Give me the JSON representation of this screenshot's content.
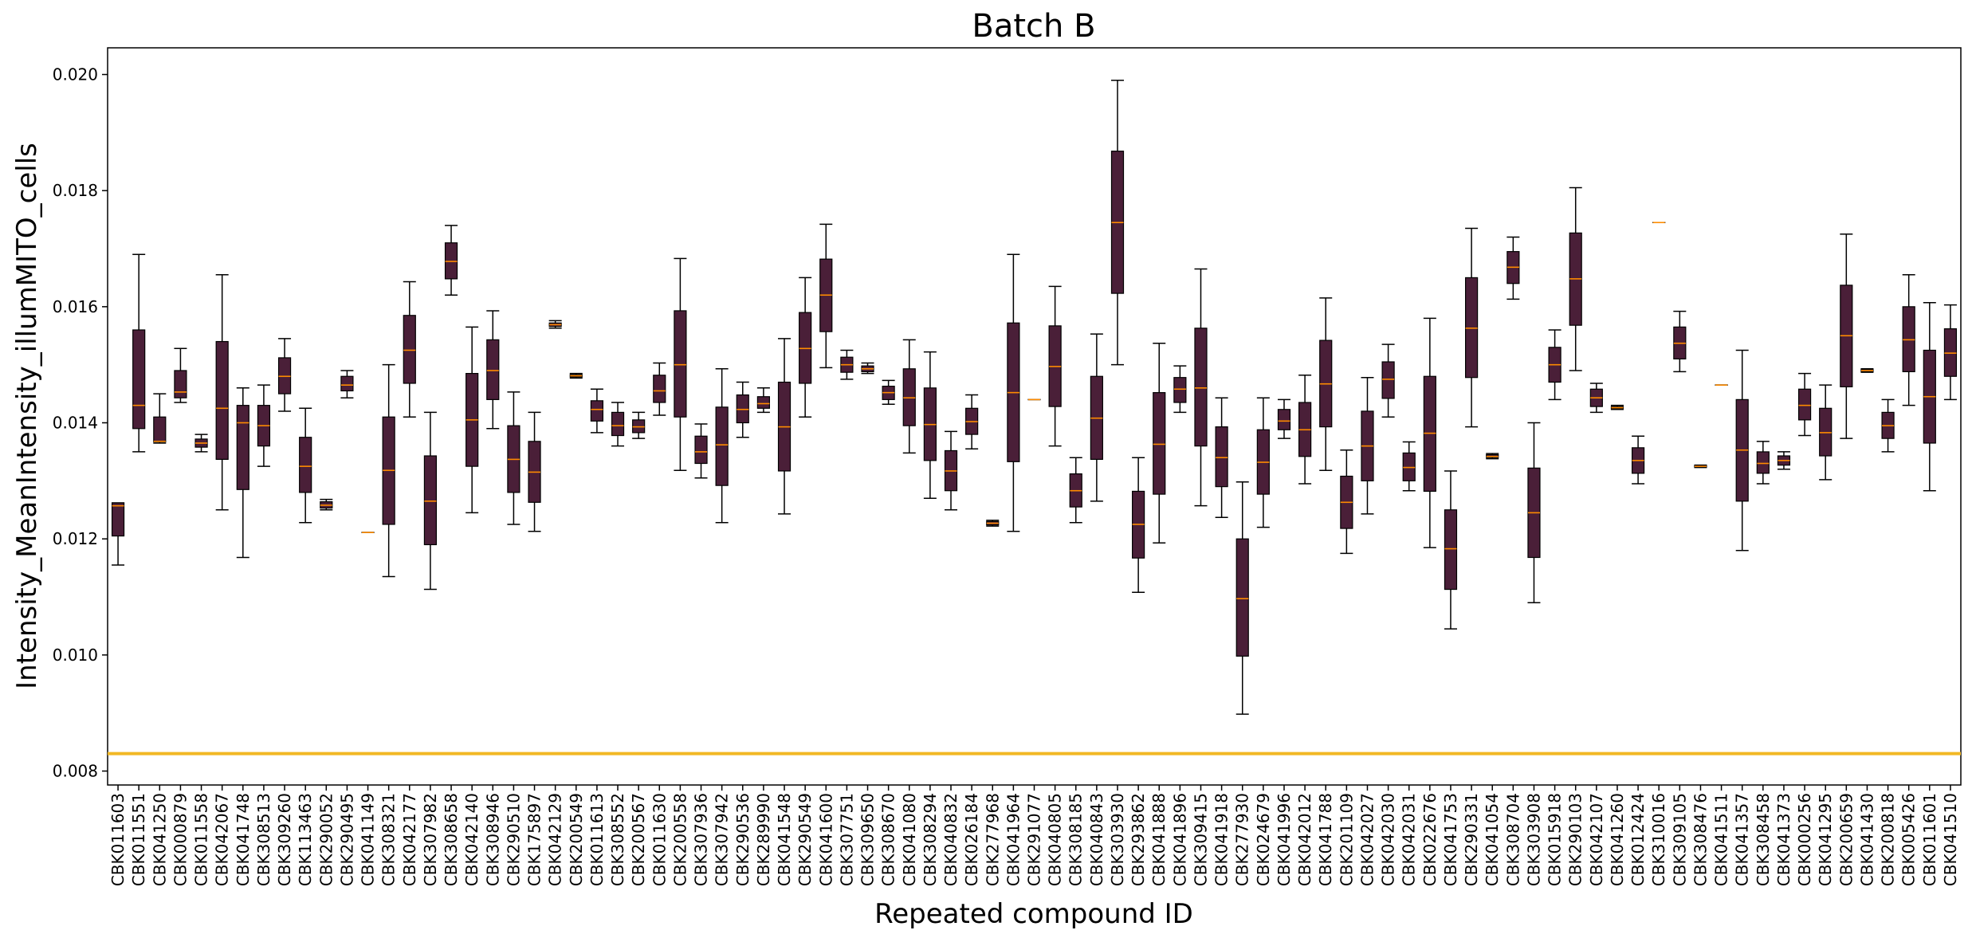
{
  "chart_data": {
    "type": "boxplot",
    "title": "Batch B",
    "xlabel": "Repeated compound ID",
    "ylabel": "Intensity_MeanIntensity_illumMITO_cells",
    "ylim": [
      0.00776,
      0.02046
    ],
    "yticks": [
      0.008,
      0.01,
      0.012,
      0.014,
      0.016,
      0.018,
      0.02
    ],
    "ytick_labels": [
      "0.008",
      "0.010",
      "0.012",
      "0.014",
      "0.016",
      "0.018",
      "0.020"
    ],
    "grid": false,
    "reference_line": {
      "y": 0.0083,
      "color": "#f2b824"
    },
    "box_color": "#4a1f38",
    "median_color": "#ff8c00",
    "categories": [
      "CBK011603",
      "CBK011551",
      "CBK041250",
      "CBK000879",
      "CBK011558",
      "CBK042067",
      "CBK041748",
      "CBK308513",
      "CBK309260",
      "CBK113463",
      "CBK290052",
      "CBK290495",
      "CBK041149",
      "CBK308321",
      "CBK042177",
      "CBK307982",
      "CBK308658",
      "CBK042140",
      "CBK308946",
      "CBK290510",
      "CBK175897",
      "CBK042129",
      "CBK200549",
      "CBK011613",
      "CBK308552",
      "CBK200567",
      "CBK011630",
      "CBK200558",
      "CBK307936",
      "CBK307942",
      "CBK290536",
      "CBK289990",
      "CBK041548",
      "CBK290549",
      "CBK041600",
      "CBK307751",
      "CBK309650",
      "CBK308670",
      "CBK041080",
      "CBK308294",
      "CBK040832",
      "CBK026184",
      "CBK277968",
      "CBK041964",
      "CBK291077",
      "CBK040805",
      "CBK308185",
      "CBK040843",
      "CBK303930",
      "CBK293862",
      "CBK041888",
      "CBK041896",
      "CBK309415",
      "CBK041918",
      "CBK277930",
      "CBK024679",
      "CBK041996",
      "CBK042012",
      "CBK041788",
      "CBK201109",
      "CBK042027",
      "CBK042030",
      "CBK042031",
      "CBK022676",
      "CBK041753",
      "CBK290331",
      "CBK041054",
      "CBK308704",
      "CBK303908",
      "CBK015918",
      "CBK290103",
      "CBK042107",
      "CBK041260",
      "CBK012424",
      "CBK310016",
      "CBK309105",
      "CBK308476",
      "CBK041511",
      "CBK041357",
      "CBK308458",
      "CBK041373",
      "CBK000256",
      "CBK041295",
      "CBK200659",
      "CBK041430",
      "CBK200818",
      "CBK005426",
      "CBK011601",
      "CBK041510"
    ],
    "boxes": [
      {
        "whislo": 0.01155,
        "q1": 0.01205,
        "med": 0.01257,
        "q3": 0.01262,
        "whishi": 0.01262
      },
      {
        "whislo": 0.0135,
        "q1": 0.0139,
        "med": 0.0143,
        "q3": 0.0156,
        "whishi": 0.0169
      },
      {
        "whislo": 0.01365,
        "q1": 0.01367,
        "med": 0.01368,
        "q3": 0.0141,
        "whishi": 0.0145
      },
      {
        "whislo": 0.01435,
        "q1": 0.01443,
        "med": 0.01453,
        "q3": 0.0149,
        "whishi": 0.01528
      },
      {
        "whislo": 0.0135,
        "q1": 0.01358,
        "med": 0.01365,
        "q3": 0.01372,
        "whishi": 0.0138
      },
      {
        "whislo": 0.0125,
        "q1": 0.01337,
        "med": 0.01425,
        "q3": 0.0154,
        "whishi": 0.01655
      },
      {
        "whislo": 0.01168,
        "q1": 0.01285,
        "med": 0.014,
        "q3": 0.0143,
        "whishi": 0.0146
      },
      {
        "whislo": 0.01325,
        "q1": 0.0136,
        "med": 0.01395,
        "q3": 0.0143,
        "whishi": 0.01465
      },
      {
        "whislo": 0.0142,
        "q1": 0.0145,
        "med": 0.0148,
        "q3": 0.01512,
        "whishi": 0.01545
      },
      {
        "whislo": 0.01228,
        "q1": 0.0128,
        "med": 0.01325,
        "q3": 0.01375,
        "whishi": 0.01425
      },
      {
        "whislo": 0.0125,
        "q1": 0.01253,
        "med": 0.01258,
        "q3": 0.01264,
        "whishi": 0.01268
      },
      {
        "whislo": 0.01443,
        "q1": 0.01455,
        "med": 0.01465,
        "q3": 0.0148,
        "whishi": 0.0149
      },
      {
        "whislo": 0.01211,
        "q1": 0.01211,
        "med": 0.01211,
        "q3": 0.01211,
        "whishi": 0.01211
      },
      {
        "whislo": 0.01135,
        "q1": 0.01225,
        "med": 0.01318,
        "q3": 0.0141,
        "whishi": 0.015
      },
      {
        "whislo": 0.0141,
        "q1": 0.01468,
        "med": 0.01525,
        "q3": 0.01585,
        "whishi": 0.01643
      },
      {
        "whislo": 0.01113,
        "q1": 0.0119,
        "med": 0.01265,
        "q3": 0.01343,
        "whishi": 0.01418
      },
      {
        "whislo": 0.0162,
        "q1": 0.01648,
        "med": 0.01678,
        "q3": 0.0171,
        "whishi": 0.0174
      },
      {
        "whislo": 0.01245,
        "q1": 0.01325,
        "med": 0.01405,
        "q3": 0.01485,
        "whishi": 0.01565
      },
      {
        "whislo": 0.0139,
        "q1": 0.0144,
        "med": 0.0149,
        "q3": 0.01543,
        "whishi": 0.01593
      },
      {
        "whislo": 0.01225,
        "q1": 0.0128,
        "med": 0.01337,
        "q3": 0.01395,
        "whishi": 0.01453
      },
      {
        "whislo": 0.01213,
        "q1": 0.01263,
        "med": 0.01315,
        "q3": 0.01368,
        "whishi": 0.01418
      },
      {
        "whislo": 0.01563,
        "q1": 0.01566,
        "med": 0.01569,
        "q3": 0.01572,
        "whishi": 0.01576
      },
      {
        "whislo": 0.01477,
        "q1": 0.01479,
        "med": 0.01481,
        "q3": 0.01483,
        "whishi": 0.01485
      },
      {
        "whislo": 0.01383,
        "q1": 0.01403,
        "med": 0.01423,
        "q3": 0.01438,
        "whishi": 0.01458
      },
      {
        "whislo": 0.0136,
        "q1": 0.01378,
        "med": 0.01395,
        "q3": 0.01418,
        "whishi": 0.01435
      },
      {
        "whislo": 0.01373,
        "q1": 0.01383,
        "med": 0.01393,
        "q3": 0.01405,
        "whishi": 0.01418
      },
      {
        "whislo": 0.01413,
        "q1": 0.01435,
        "med": 0.01455,
        "q3": 0.01482,
        "whishi": 0.01503
      },
      {
        "whislo": 0.01318,
        "q1": 0.0141,
        "med": 0.015,
        "q3": 0.01593,
        "whishi": 0.01683
      },
      {
        "whislo": 0.01305,
        "q1": 0.0133,
        "med": 0.0135,
        "q3": 0.01377,
        "whishi": 0.01398
      },
      {
        "whislo": 0.01228,
        "q1": 0.01292,
        "med": 0.01362,
        "q3": 0.01427,
        "whishi": 0.01493
      },
      {
        "whislo": 0.01375,
        "q1": 0.014,
        "med": 0.01423,
        "q3": 0.01448,
        "whishi": 0.0147
      },
      {
        "whislo": 0.01418,
        "q1": 0.01425,
        "med": 0.01433,
        "q3": 0.01445,
        "whishi": 0.0146
      },
      {
        "whislo": 0.01243,
        "q1": 0.01317,
        "med": 0.01393,
        "q3": 0.0147,
        "whishi": 0.01545
      },
      {
        "whislo": 0.0141,
        "q1": 0.01468,
        "med": 0.01528,
        "q3": 0.0159,
        "whishi": 0.0165
      },
      {
        "whislo": 0.01495,
        "q1": 0.01557,
        "med": 0.0162,
        "q3": 0.01682,
        "whishi": 0.01742
      },
      {
        "whislo": 0.01475,
        "q1": 0.01487,
        "med": 0.015,
        "q3": 0.01513,
        "whishi": 0.01525
      },
      {
        "whislo": 0.01485,
        "q1": 0.01488,
        "med": 0.01493,
        "q3": 0.01498,
        "whishi": 0.01503
      },
      {
        "whislo": 0.01432,
        "q1": 0.0144,
        "med": 0.01452,
        "q3": 0.01463,
        "whishi": 0.01473
      },
      {
        "whislo": 0.01348,
        "q1": 0.01395,
        "med": 0.01443,
        "q3": 0.01493,
        "whishi": 0.01543
      },
      {
        "whislo": 0.0127,
        "q1": 0.01335,
        "med": 0.01397,
        "q3": 0.0146,
        "whishi": 0.01522
      },
      {
        "whislo": 0.0125,
        "q1": 0.01283,
        "med": 0.01317,
        "q3": 0.01352,
        "whishi": 0.01385
      },
      {
        "whislo": 0.01355,
        "q1": 0.0138,
        "med": 0.01402,
        "q3": 0.01425,
        "whishi": 0.01448
      },
      {
        "whislo": 0.01222,
        "q1": 0.01224,
        "med": 0.01227,
        "q3": 0.0123,
        "whishi": 0.01232
      },
      {
        "whislo": 0.01213,
        "q1": 0.01333,
        "med": 0.01452,
        "q3": 0.01572,
        "whishi": 0.0169
      },
      {
        "whislo": 0.0144,
        "q1": 0.0144,
        "med": 0.0144,
        "q3": 0.0144,
        "whishi": 0.0144
      },
      {
        "whislo": 0.0136,
        "q1": 0.01428,
        "med": 0.01497,
        "q3": 0.01567,
        "whishi": 0.01635
      },
      {
        "whislo": 0.01228,
        "q1": 0.01255,
        "med": 0.01283,
        "q3": 0.01312,
        "whishi": 0.0134
      },
      {
        "whislo": 0.01265,
        "q1": 0.01337,
        "med": 0.01408,
        "q3": 0.0148,
        "whishi": 0.01553
      },
      {
        "whislo": 0.015,
        "q1": 0.01623,
        "med": 0.01745,
        "q3": 0.01868,
        "whishi": 0.0199
      },
      {
        "whislo": 0.01108,
        "q1": 0.01167,
        "med": 0.01225,
        "q3": 0.01282,
        "whishi": 0.0134
      },
      {
        "whislo": 0.01193,
        "q1": 0.01277,
        "med": 0.01363,
        "q3": 0.01452,
        "whishi": 0.01537
      },
      {
        "whislo": 0.01418,
        "q1": 0.01435,
        "med": 0.01458,
        "q3": 0.01478,
        "whishi": 0.01498
      },
      {
        "whislo": 0.01257,
        "q1": 0.0136,
        "med": 0.0146,
        "q3": 0.01563,
        "whishi": 0.01665
      },
      {
        "whislo": 0.01237,
        "q1": 0.0129,
        "med": 0.0134,
        "q3": 0.01393,
        "whishi": 0.01443
      },
      {
        "whislo": 0.00898,
        "q1": 0.00998,
        "med": 0.01097,
        "q3": 0.012,
        "whishi": 0.01298
      },
      {
        "whislo": 0.0122,
        "q1": 0.01277,
        "med": 0.01332,
        "q3": 0.01388,
        "whishi": 0.01443
      },
      {
        "whislo": 0.01373,
        "q1": 0.01388,
        "med": 0.01403,
        "q3": 0.01423,
        "whishi": 0.0144
      },
      {
        "whislo": 0.01295,
        "q1": 0.01342,
        "med": 0.01388,
        "q3": 0.01435,
        "whishi": 0.01482
      },
      {
        "whislo": 0.01318,
        "q1": 0.01393,
        "med": 0.01467,
        "q3": 0.01542,
        "whishi": 0.01615
      },
      {
        "whislo": 0.01175,
        "q1": 0.01218,
        "med": 0.01263,
        "q3": 0.01308,
        "whishi": 0.01353
      },
      {
        "whislo": 0.01243,
        "q1": 0.013,
        "med": 0.0136,
        "q3": 0.0142,
        "whishi": 0.01478
      },
      {
        "whislo": 0.0141,
        "q1": 0.01442,
        "med": 0.01475,
        "q3": 0.01505,
        "whishi": 0.01535
      },
      {
        "whislo": 0.01283,
        "q1": 0.013,
        "med": 0.01323,
        "q3": 0.01348,
        "whishi": 0.01367
      },
      {
        "whislo": 0.01185,
        "q1": 0.01282,
        "med": 0.01382,
        "q3": 0.0148,
        "whishi": 0.0158
      },
      {
        "whislo": 0.01045,
        "q1": 0.01113,
        "med": 0.01183,
        "q3": 0.0125,
        "whishi": 0.01317
      },
      {
        "whislo": 0.01393,
        "q1": 0.01478,
        "med": 0.01563,
        "q3": 0.0165,
        "whishi": 0.01735
      },
      {
        "whislo": 0.01338,
        "q1": 0.0134,
        "med": 0.01342,
        "q3": 0.01345,
        "whishi": 0.01347
      },
      {
        "whislo": 0.01613,
        "q1": 0.0164,
        "med": 0.01668,
        "q3": 0.01695,
        "whishi": 0.0172
      },
      {
        "whislo": 0.0109,
        "q1": 0.01168,
        "med": 0.01245,
        "q3": 0.01322,
        "whishi": 0.014
      },
      {
        "whislo": 0.0144,
        "q1": 0.0147,
        "med": 0.015,
        "q3": 0.0153,
        "whishi": 0.0156
      },
      {
        "whislo": 0.0149,
        "q1": 0.01568,
        "med": 0.01648,
        "q3": 0.01727,
        "whishi": 0.01805
      },
      {
        "whislo": 0.01418,
        "q1": 0.01428,
        "med": 0.01443,
        "q3": 0.01458,
        "whishi": 0.01468
      },
      {
        "whislo": 0.01423,
        "q1": 0.01424,
        "med": 0.01426,
        "q3": 0.01428,
        "whishi": 0.0143
      },
      {
        "whislo": 0.01295,
        "q1": 0.01313,
        "med": 0.01335,
        "q3": 0.01357,
        "whishi": 0.01377
      },
      {
        "whislo": 0.01745,
        "q1": 0.01745,
        "med": 0.01745,
        "q3": 0.01745,
        "whishi": 0.01745
      },
      {
        "whislo": 0.01488,
        "q1": 0.0151,
        "med": 0.01537,
        "q3": 0.01565,
        "whishi": 0.01592
      },
      {
        "whislo": 0.01323,
        "q1": 0.01324,
        "med": 0.01325,
        "q3": 0.01326,
        "whishi": 0.01327
      },
      {
        "whislo": 0.01465,
        "q1": 0.01465,
        "med": 0.01465,
        "q3": 0.01465,
        "whishi": 0.01465
      },
      {
        "whislo": 0.0118,
        "q1": 0.01265,
        "med": 0.01353,
        "q3": 0.0144,
        "whishi": 0.01525
      },
      {
        "whislo": 0.01295,
        "q1": 0.01313,
        "med": 0.0133,
        "q3": 0.0135,
        "whishi": 0.01368
      },
      {
        "whislo": 0.0132,
        "q1": 0.01327,
        "med": 0.01335,
        "q3": 0.01343,
        "whishi": 0.0135
      },
      {
        "whislo": 0.01378,
        "q1": 0.01405,
        "med": 0.0143,
        "q3": 0.01458,
        "whishi": 0.01485
      },
      {
        "whislo": 0.01302,
        "q1": 0.01343,
        "med": 0.01383,
        "q3": 0.01425,
        "whishi": 0.01465
      },
      {
        "whislo": 0.01373,
        "q1": 0.01462,
        "med": 0.0155,
        "q3": 0.01637,
        "whishi": 0.01725
      },
      {
        "whislo": 0.01487,
        "q1": 0.01488,
        "med": 0.0149,
        "q3": 0.01492,
        "whishi": 0.01493
      },
      {
        "whislo": 0.0135,
        "q1": 0.01373,
        "med": 0.01395,
        "q3": 0.01418,
        "whishi": 0.0144
      },
      {
        "whislo": 0.0143,
        "q1": 0.01488,
        "med": 0.01543,
        "q3": 0.016,
        "whishi": 0.01655
      },
      {
        "whislo": 0.01283,
        "q1": 0.01365,
        "med": 0.01445,
        "q3": 0.01525,
        "whishi": 0.01607
      },
      {
        "whislo": 0.0144,
        "q1": 0.0148,
        "med": 0.0152,
        "q3": 0.01562,
        "whishi": 0.01603
      }
    ]
  }
}
